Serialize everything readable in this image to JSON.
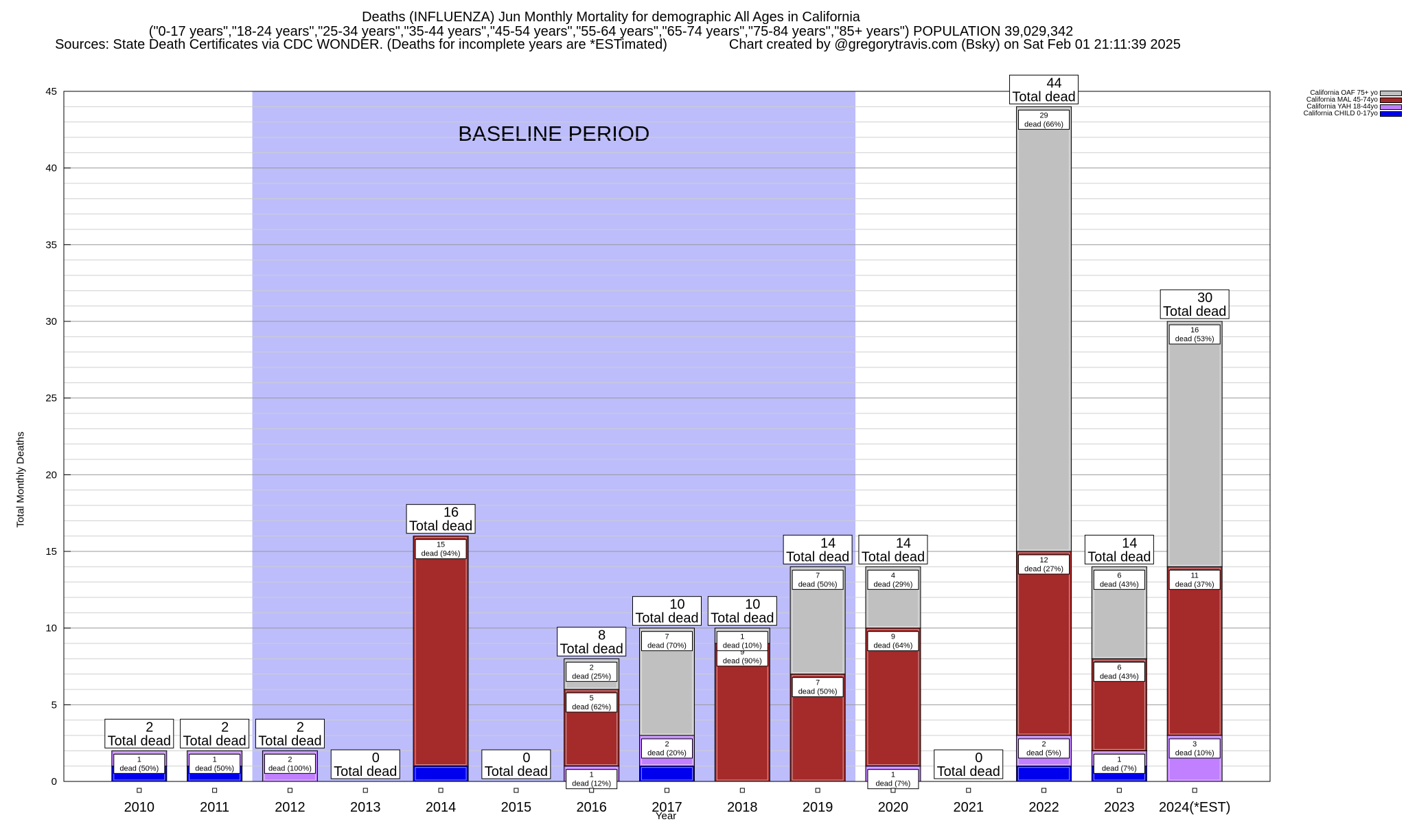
{
  "header": {
    "title": "Deaths (INFLUENZA) Jun Monthly Mortality for demographic All Ages in California",
    "subtitle": "(\"0-17 years\",\"18-24 years\",\"25-34 years\",\"35-44 years\",\"45-54 years\",\"55-64 years\",\"65-74 years\",\"75-84 years\",\"85+ years\") POPULATION 39,029,342",
    "sources": "Sources: State Death Certificates via CDC WONDER. (Deaths for incomplete years are *ESTimated)",
    "credit": "Chart created by @gregorytravis.com (Bsky) on Sat Feb 01 21:11:39 2025"
  },
  "chart_data": {
    "type": "bar",
    "stacked": true,
    "xlabel": "Year",
    "ylabel": "Total Monthly Deaths",
    "ylim": [
      0,
      45
    ],
    "yticks": [
      0,
      5,
      10,
      15,
      20,
      25,
      30,
      35,
      40,
      45
    ],
    "grid": true,
    "legend_position": "outside-top-right",
    "baseline_label": "BASELINE PERIOD",
    "baseline_range": [
      "2012",
      "2019"
    ],
    "total_label": "Total dead",
    "segment_label": "dead",
    "categories": [
      "2010",
      "2011",
      "2012",
      "2013",
      "2014",
      "2015",
      "2016",
      "2017",
      "2018",
      "2019",
      "2020",
      "2021",
      "2022",
      "2023",
      "2024(*EST)"
    ],
    "totals": [
      2,
      2,
      2,
      0,
      16,
      0,
      8,
      10,
      10,
      14,
      14,
      0,
      44,
      14,
      30
    ],
    "series": [
      {
        "name": "California CHILD 0-17yo",
        "color": "#0000ee",
        "values": [
          1,
          1,
          0,
          0,
          1,
          0,
          0,
          1,
          0,
          0,
          0,
          0,
          1,
          1,
          0
        ]
      },
      {
        "name": "California YAH 18-44yo",
        "color": "#c080ff",
        "values": [
          1,
          1,
          2,
          0,
          0,
          0,
          1,
          2,
          0,
          0,
          1,
          0,
          2,
          1,
          3
        ]
      },
      {
        "name": "California MAL 45-74yo",
        "color": "#a52a2a",
        "values": [
          0,
          0,
          0,
          0,
          15,
          0,
          5,
          0,
          9,
          7,
          9,
          0,
          12,
          6,
          11
        ]
      },
      {
        "name": "California OAF 75+ yo",
        "color": "#c0c0c0",
        "values": [
          0,
          0,
          0,
          0,
          0,
          0,
          2,
          7,
          1,
          7,
          4,
          0,
          29,
          6,
          16
        ]
      }
    ],
    "segment_labels": [
      [
        null,
        "1",
        null,
        null
      ],
      [
        null,
        "1",
        null,
        null
      ],
      [
        null,
        "2",
        null,
        null
      ],
      [
        null,
        null,
        null,
        null
      ],
      [
        null,
        null,
        "15",
        null
      ],
      [
        null,
        null,
        null,
        null
      ],
      [
        null,
        "1",
        "5",
        "2"
      ],
      [
        null,
        "2",
        null,
        "7"
      ],
      [
        null,
        null,
        "9",
        "1"
      ],
      [
        null,
        null,
        "7",
        "7"
      ],
      [
        null,
        "1",
        "9",
        "4"
      ],
      [
        null,
        null,
        null,
        null
      ],
      [
        null,
        "2",
        "12",
        "29"
      ],
      [
        null,
        "1",
        "6",
        "6"
      ],
      [
        null,
        "3",
        "11",
        "16"
      ]
    ],
    "segment_pcts": [
      [
        null,
        "(50%)",
        null,
        null
      ],
      [
        null,
        "(50%)",
        null,
        null
      ],
      [
        null,
        "(100%)",
        null,
        null
      ],
      [
        null,
        null,
        null,
        null
      ],
      [
        null,
        null,
        "(94%)",
        null
      ],
      [
        null,
        null,
        null,
        null
      ],
      [
        null,
        "(12%)",
        "(62%)",
        "(25%)"
      ],
      [
        null,
        "(20%)",
        null,
        "(70%)"
      ],
      [
        null,
        null,
        "(90%)",
        "(10%)"
      ],
      [
        null,
        null,
        "(50%)",
        "(50%)"
      ],
      [
        null,
        "(7%)",
        "(64%)",
        "(29%)"
      ],
      [
        null,
        null,
        null,
        null
      ],
      [
        null,
        "(5%)",
        "(27%)",
        "(66%)"
      ],
      [
        null,
        "(7%)",
        "(43%)",
        "(43%)"
      ],
      [
        null,
        "(10%)",
        "(37%)",
        "(53%)"
      ]
    ]
  }
}
